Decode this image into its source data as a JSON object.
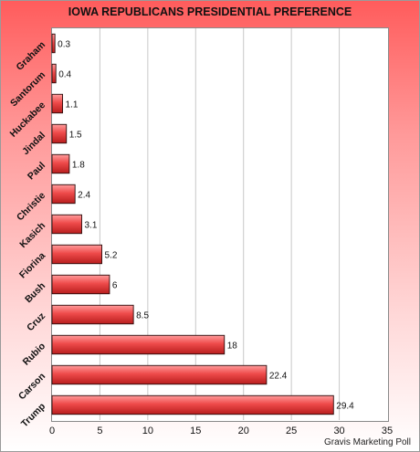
{
  "chart_data": {
    "type": "bar",
    "orientation": "horizontal",
    "title": "IOWA REPUBLICANS PRESIDENTIAL PREFERENCE",
    "categories": [
      "Graham",
      "Santorum",
      "Huckabee",
      "Jindal",
      "Paul",
      "Christie",
      "Kasich",
      "Fiorina",
      "Bush",
      "Cruz",
      "Rubio",
      "Carson",
      "Trump"
    ],
    "values": [
      0.3,
      0.4,
      1.1,
      1.5,
      1.8,
      2.4,
      3.1,
      5.2,
      6,
      8.5,
      18,
      22.4,
      29.4
    ],
    "value_labels": [
      "0.3",
      "0.4",
      "1.1",
      "1.5",
      "1.8",
      "2.4",
      "3.1",
      "5.2",
      "6",
      "8.5",
      "18",
      "22.4",
      "29.4"
    ],
    "xlim": [
      0,
      35
    ],
    "xticks": [
      "0",
      "5",
      "10",
      "15",
      "20",
      "25",
      "30",
      "35"
    ],
    "grid": true,
    "bar_color": "#e83a3a",
    "source": "Gravis Marketing Poll"
  }
}
